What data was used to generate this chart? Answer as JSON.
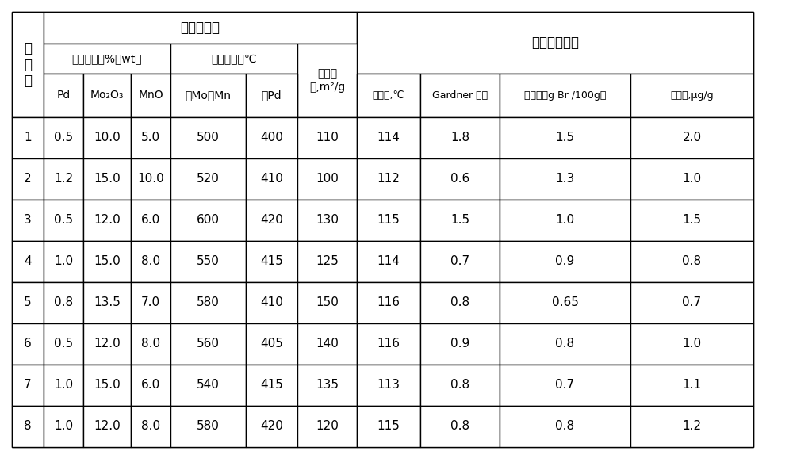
{
  "col_header_row1": [
    "实\n施\n例",
    "催化剂制备",
    "",
    "",
    "",
    "",
    "",
    "氢化树脂指标",
    "",
    "",
    ""
  ],
  "col_header_row2": [
    "",
    "活性组分，%（wt）",
    "",
    "",
    "焙烧温度，℃",
    "",
    "比表面",
    "",
    "",
    "",
    ""
  ],
  "col_header_row3": [
    "",
    "Pd",
    "Mo₂O₃",
    "MnO",
    "载Mo、Mn",
    "载Pd",
    "积,m²/g",
    "软化点,℃",
    "Gardner 色度",
    "溴值，（g Br /100g）",
    "硫含量,μg/g"
  ],
  "rows": [
    [
      "1",
      "0.5",
      "10.0",
      "5.0",
      "500",
      "400",
      "110",
      "114",
      "1.8",
      "1.5",
      "2.0"
    ],
    [
      "2",
      "1.2",
      "15.0",
      "10.0",
      "520",
      "410",
      "100",
      "112",
      "0.6",
      "1.3",
      "1.0"
    ],
    [
      "3",
      "0.5",
      "12.0",
      "6.0",
      "600",
      "420",
      "130",
      "115",
      "1.5",
      "1.0",
      "1.5"
    ],
    [
      "4",
      "1.0",
      "15.0",
      "8.0",
      "550",
      "415",
      "125",
      "114",
      "0.7",
      "0.9",
      "0.8"
    ],
    [
      "5",
      "0.8",
      "13.5",
      "7.0",
      "580",
      "410",
      "150",
      "116",
      "0.8",
      "0.65",
      "0.7"
    ],
    [
      "6",
      "0.5",
      "12.0",
      "8.0",
      "560",
      "405",
      "140",
      "116",
      "0.9",
      "0.8",
      "1.0"
    ],
    [
      "7",
      "1.0",
      "15.0",
      "6.0",
      "540",
      "415",
      "135",
      "113",
      "0.8",
      "0.7",
      "1.1"
    ],
    [
      "8",
      "1.0",
      "12.0",
      "8.0",
      "580",
      "420",
      "120",
      "115",
      "0.8",
      "0.8",
      "1.2"
    ]
  ],
  "background_color": "#ffffff",
  "border_color": "#000000",
  "font_size": 11,
  "header_font_size": 11
}
